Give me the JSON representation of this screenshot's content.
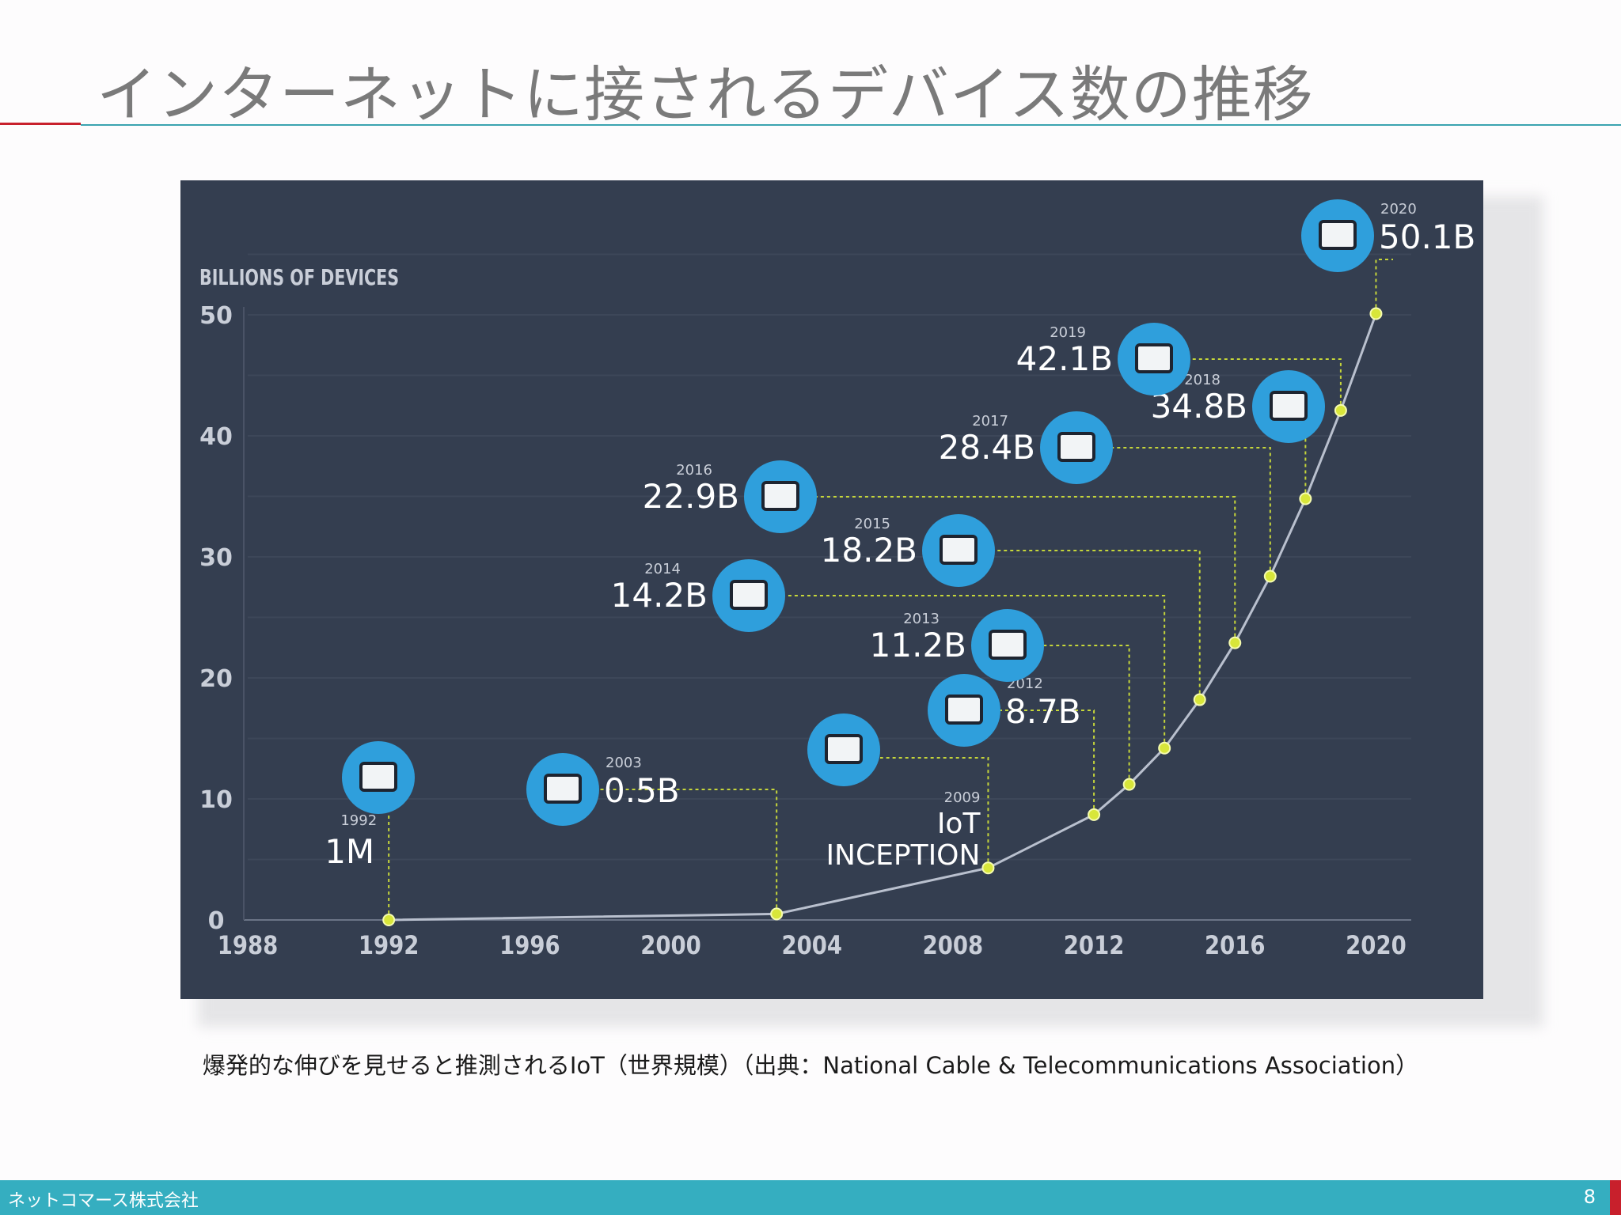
{
  "slide": {
    "title": "インターネットに接されるデバイス数の推移",
    "caption": "爆発的な伸びを見せると推測されるIoT（世界規模）（出典：National Cable & Telecommunications Association）",
    "footer_company": "ネットコマース株式会社",
    "page_number": "8",
    "colors": {
      "accent_red": "#c8202c",
      "accent_teal": "#35aec0",
      "title_gray": "#7a7a7a"
    }
  },
  "chart_data": {
    "type": "line",
    "title": "",
    "ylabel": "BILLIONS OF DEVICES",
    "xlabel": "",
    "xlim": [
      1988,
      2021
    ],
    "ylim": [
      0,
      50
    ],
    "x_ticks": [
      1988,
      1992,
      1996,
      2000,
      2004,
      2008,
      2012,
      2016,
      2020
    ],
    "y_ticks": [
      0,
      10,
      20,
      30,
      40,
      50
    ],
    "grid": true,
    "series": [
      {
        "points": [
          {
            "x": 1992,
            "y": 0.001
          },
          {
            "x": 2003,
            "y": 0.5
          },
          {
            "x": 2009,
            "y": 4.3
          },
          {
            "x": 2012,
            "y": 8.7
          },
          {
            "x": 2013,
            "y": 11.2
          },
          {
            "x": 2014,
            "y": 14.2
          },
          {
            "x": 2015,
            "y": 18.2
          },
          {
            "x": 2016,
            "y": 22.9
          },
          {
            "x": 2017,
            "y": 28.4
          },
          {
            "x": 2018,
            "y": 34.8
          },
          {
            "x": 2019,
            "y": 42.1
          },
          {
            "x": 2020,
            "y": 50.1
          }
        ]
      }
    ],
    "annotations": [
      {
        "x": 1992,
        "year": "1992",
        "value": "1M",
        "icon": "desktop-computer-icon"
      },
      {
        "x": 2003,
        "year": "2003",
        "value": "0.5B",
        "icon": "laptop-icon"
      },
      {
        "x": 2009,
        "year": "2009",
        "value": "IoT",
        "value2": "INCEPTION",
        "icon": "lightbulb-icon"
      },
      {
        "x": 2012,
        "year": "2012",
        "value": "8.7B",
        "icon": "smartwatch-phone-icon"
      },
      {
        "x": 2013,
        "year": "2013",
        "value": "11.2B",
        "icon": "oven-icon"
      },
      {
        "x": 2014,
        "year": "2014",
        "value": "14.2B",
        "icon": "wind-turbine-icon"
      },
      {
        "x": 2015,
        "year": "2015",
        "value": "18.2B",
        "icon": "street-lamp-icon"
      },
      {
        "x": 2016,
        "year": "2016",
        "value": "22.9B",
        "icon": "traffic-light-icon"
      },
      {
        "x": 2017,
        "year": "2017",
        "value": "28.4B",
        "icon": "tablet-icon"
      },
      {
        "x": 2018,
        "year": "2018",
        "value": "34.8B",
        "icon": "money-card-icon"
      },
      {
        "x": 2019,
        "year": "2019",
        "value": "42.1B",
        "icon": "light-switch-icon"
      },
      {
        "x": 2020,
        "year": "2020",
        "value": "50.1B",
        "icon": "door-handle-icon"
      }
    ],
    "colors": {
      "background": "#343e50",
      "line": "#b9c0ce",
      "point": "#d8e63a",
      "leader": "#c6d63a",
      "icon_circle": "#2f9fdc",
      "text": "#ffffff",
      "axis_text": "#c9ced8",
      "grid": "#3d4759"
    }
  }
}
